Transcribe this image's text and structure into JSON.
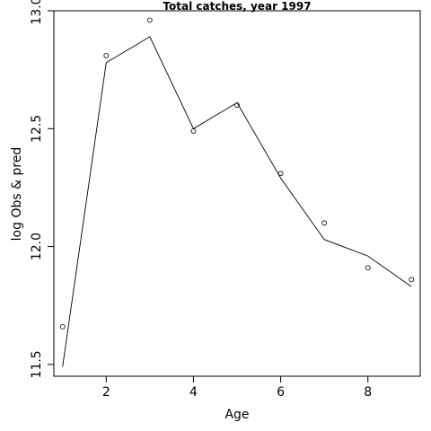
{
  "chart_data": {
    "type": "line",
    "title": "Total catches, year 1997",
    "xlabel": "Age",
    "ylabel": "log Obs & pred",
    "xlim": [
      0.8,
      9.2
    ],
    "ylim": [
      11.45,
      13.0
    ],
    "x_ticks": [
      2,
      4,
      6,
      8
    ],
    "x_tick_labels": [
      "2",
      "4",
      "6",
      "8"
    ],
    "y_ticks": [
      11.5,
      12.0,
      12.5,
      13.0
    ],
    "y_tick_labels": [
      "11.5",
      "12.0",
      "12.5",
      "13.0"
    ],
    "grid": false,
    "series": [
      {
        "style": "points",
        "x": [
          1,
          2,
          3,
          4,
          5,
          6,
          7,
          8,
          9
        ],
        "y": [
          11.66,
          12.81,
          12.96,
          12.49,
          12.6,
          12.31,
          12.1,
          11.91,
          11.86
        ]
      },
      {
        "style": "line",
        "x": [
          1,
          2,
          3,
          4,
          5,
          6,
          7,
          8,
          9
        ],
        "y": [
          11.49,
          12.78,
          12.89,
          12.5,
          12.61,
          12.29,
          12.03,
          11.96,
          11.83
        ]
      }
    ]
  }
}
